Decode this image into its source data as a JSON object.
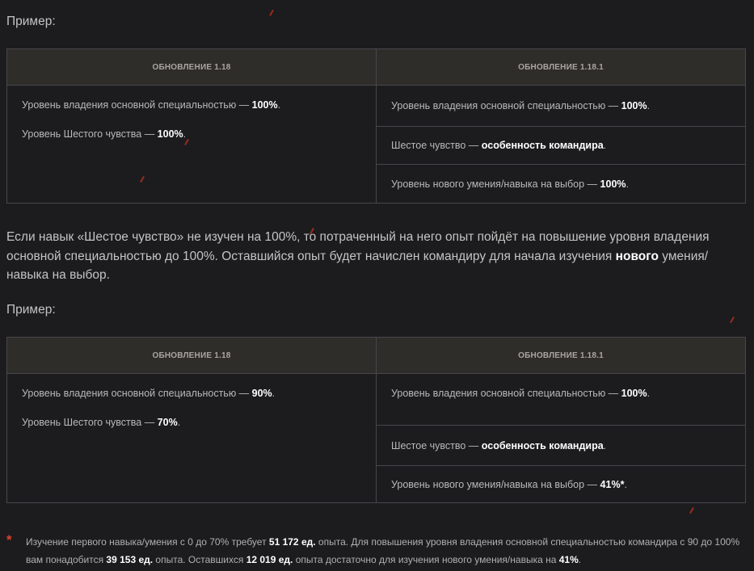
{
  "example_label": "Пример:",
  "table1": {
    "headers": [
      "ОБНОВЛЕНИЕ 1.18",
      "ОБНОВЛЕНИЕ 1.18.1"
    ],
    "left": [
      {
        "text": "Уровень владения основной специальностью — ",
        "bold": "100%",
        "end": "."
      },
      {
        "text": "Уровень Шестого чувства — ",
        "bold": "100%",
        "end": "."
      }
    ],
    "right": [
      {
        "text": "Уровень владения основной специальностью — ",
        "bold": "100%",
        "end": "."
      },
      {
        "text": "Шестое чувство — ",
        "bold": "особенность командира",
        "end": "."
      },
      {
        "text": "Уровень нового умения/навыка на выбор — ",
        "bold": "100%",
        "end": "."
      }
    ]
  },
  "paragraph": {
    "part1": "Если навык «Шестое чувство» не изучен на 100%, то потраченный на него опыт пойдёт на повышение уровня владения основной специальностью до 100%. Оставшийся опыт будет начислен командиру для начала изучения ",
    "bold": "нового",
    "part2": " умения/навыка на выбор."
  },
  "example_label_2": "Пример:",
  "table2": {
    "headers": [
      "ОБНОВЛЕНИЕ 1.18",
      "ОБНОВЛЕНИЕ 1.18.1"
    ],
    "left": [
      {
        "text": "Уровень владения основной специальностью — ",
        "bold": "90%",
        "end": "."
      },
      {
        "text": "Уровень Шестого чувства — ",
        "bold": "70%",
        "end": "."
      }
    ],
    "right": [
      {
        "text": "Уровень владения основной специальностью — ",
        "bold": "100%",
        "end": "."
      },
      {
        "text": "Шестое чувство — ",
        "bold": "особенность командира",
        "end": "."
      },
      {
        "text": "Уровень нового умения/навыка на выбор — ",
        "bold": "41%*",
        "end": "."
      }
    ]
  },
  "footnote": {
    "marker": "*",
    "t1": "Изучение первого навыка/умения с 0 до 70% требует ",
    "b1": "51 172 ед.",
    "t2": " опыта. Для повышения уровня владения основной специальностью командира с 90 до 100% вам понадобится ",
    "b2": "39 153 ед.",
    "t3": " опыта. Оставшихся ",
    "b3": "12 019 ед.",
    "t4": " опыта достаточно для изучения нового умения/навыка на ",
    "b4": "41%",
    "t5": "."
  },
  "colors": {
    "background": "#1c1c1e",
    "header": "#2f2d2a",
    "accent": "#e0402a"
  }
}
